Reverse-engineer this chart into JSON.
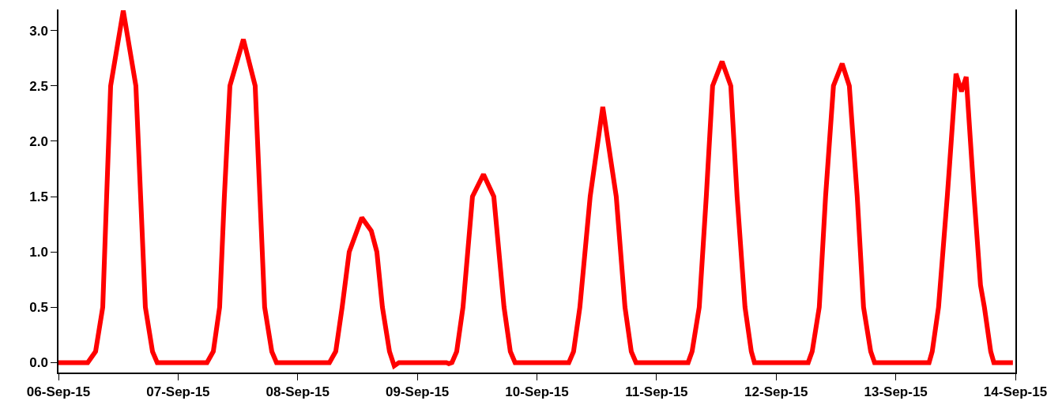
{
  "chart_data": {
    "type": "line",
    "x": [
      "--09-06T00:00",
      "--09-06T05:52",
      "--09-06T07:27",
      "--09-06T08:53",
      "--09-06T09:40",
      "--09-06T10:28",
      "--09-06T13:00",
      "--09-06T15:32",
      "--09-06T16:29",
      "--09-06T17:26",
      "--09-06T18:52",
      "--09-06T19:49",
      "--09-07T05:48",
      "--09-07T07:04",
      "--09-07T08:20",
      "--09-07T09:17",
      "--09-07T10:24",
      "--09-07T13:06",
      "--09-07T15:28",
      "--09-07T16:25",
      "--09-07T17:22",
      "--09-07T18:48",
      "--09-07T19:45",
      "--09-08T06:22",
      "--09-08T07:38",
      "--09-08T08:55",
      "--09-08T10:20",
      "--09-08T12:52",
      "--09-08T14:46",
      "--09-08T15:53",
      "--09-08T17:00",
      "--09-08T18:25",
      "--09-08T19:22",
      "--09-08T20:19",
      "--09-09T05:50",
      "--09-09T06:19",
      "--09-09T06:57",
      "--09-09T07:54",
      "--09-09T09:10",
      "--09-09T11:04",
      "--09-09T13:17",
      "--09-09T15:21",
      "--09-09T17:24",
      "--09-09T18:40",
      "--09-09T19:37",
      "--09-10T06:24",
      "--09-10T07:21",
      "--09-10T08:37",
      "--09-10T10:41",
      "--09-10T13:13",
      "--09-10T15:55",
      "--09-10T17:40",
      "--09-10T18:56",
      "--09-10T19:53",
      "--09-11T06:20",
      "--09-11T07:08",
      "--09-11T08:34",
      "--09-11T09:59",
      "--09-11T11:15",
      "--09-11T13:09",
      "--09-11T14:54",
      "--09-11T16:10",
      "--09-11T17:45",
      "--09-11T19:01",
      "--09-11T19:39",
      "--09-12T06:26",
      "--09-12T07:14",
      "--09-12T08:39",
      "--09-12T09:55",
      "--09-12T11:30",
      "--09-12T13:15",
      "--09-12T14:41",
      "--09-12T16:16",
      "--09-12T17:32",
      "--09-12T18:58",
      "--09-12T19:45",
      "--09-13T06:41",
      "--09-13T07:19",
      "--09-13T08:35",
      "--09-13T10:20",
      "--09-13T10:49",
      "--09-13T12:05",
      "--09-13T13:11",
      "--09-13T14:08",
      "--09-13T15:43",
      "--09-13T17:00",
      "--09-13T17:47",
      "--09-13T19:03",
      "--09-13T19:41",
      "--09-13T23:30"
    ],
    "series": [
      {
        "color": "#ff0000",
        "values": [
          0,
          0,
          0.1,
          0.5,
          1.5,
          2.5,
          3.18,
          2.5,
          1.5,
          0.5,
          0.1,
          0,
          0,
          0.1,
          0.5,
          1.5,
          2.5,
          2.92,
          2.5,
          1.5,
          0.5,
          0.1,
          0,
          0,
          0.1,
          0.5,
          1.0,
          1.31,
          1.19,
          1.0,
          0.5,
          0.1,
          -0.03,
          0,
          0,
          -0.01,
          0,
          0.1,
          0.5,
          1.5,
          1.7,
          1.5,
          0.5,
          0.1,
          0,
          0,
          0.1,
          0.5,
          1.5,
          2.31,
          1.5,
          0.5,
          0.1,
          0,
          0,
          0.1,
          0.5,
          1.5,
          2.5,
          2.72,
          2.5,
          1.5,
          0.5,
          0.1,
          0,
          0,
          0.1,
          0.5,
          1.5,
          2.5,
          2.7,
          2.5,
          1.5,
          0.5,
          0.1,
          0,
          0,
          0.1,
          0.5,
          1.5,
          1.8,
          2.61,
          2.45,
          2.58,
          1.5,
          0.7,
          0.5,
          0.1,
          0,
          0
        ]
      }
    ],
    "xlim": [
      "--09-06",
      "--09-14"
    ],
    "xticks": [
      {
        "value": "--09-06",
        "label": "06-Sep-15"
      },
      {
        "value": "--09-07",
        "label": "07-Sep-15"
      },
      {
        "value": "--09-08",
        "label": "08-Sep-15"
      },
      {
        "value": "--09-09",
        "label": "09-Sep-15"
      },
      {
        "value": "--09-10",
        "label": "10-Sep-15"
      },
      {
        "value": "--09-11",
        "label": "11-Sep-15"
      },
      {
        "value": "--09-12",
        "label": "12-Sep-15"
      },
      {
        "value": "--09-13",
        "label": "13-Sep-15"
      },
      {
        "value": "--09-14",
        "label": "14-Sep-15"
      }
    ],
    "ylim": [
      -0.09,
      3.19
    ],
    "yticks": [
      {
        "value": 0,
        "label": "0.0"
      },
      {
        "value": 0.5,
        "label": "0.5"
      },
      {
        "value": 1,
        "label": "1.0"
      },
      {
        "value": 1.5,
        "label": "1.5"
      },
      {
        "value": 2,
        "label": "2.0"
      },
      {
        "value": 2.5,
        "label": "2.5"
      },
      {
        "value": 3,
        "label": "3.0"
      }
    ],
    "marker": "none",
    "line_style": "solid"
  }
}
